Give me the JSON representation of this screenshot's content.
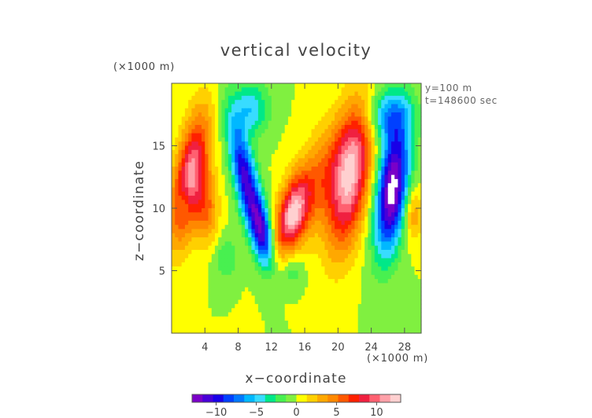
{
  "chart_data": {
    "type": "heatmap",
    "title": "vertical velocity",
    "xlabel": "x−coordinate",
    "ylabel": "z−coordinate",
    "x_unit": "(×1000 m)",
    "y_unit": "(×1000 m)",
    "xlim": [
      0,
      30
    ],
    "ylim": [
      0,
      20
    ],
    "x_ticks": [
      4,
      8,
      12,
      16,
      20,
      24,
      28
    ],
    "y_ticks": [
      5,
      10,
      15
    ],
    "x_tick_labels": [
      "4",
      "8",
      "12",
      "16",
      "20",
      "24",
      "28"
    ],
    "y_tick_labels": [
      "5",
      "10",
      "15"
    ],
    "annotations": [
      "y=100 m",
      "t=148600 sec"
    ],
    "colorbar": {
      "min": -13,
      "max": 13,
      "ticks": [
        -10,
        -5,
        0,
        5,
        10
      ],
      "tick_labels": [
        "−10",
        "−5",
        "0",
        "5",
        "10"
      ],
      "colors": [
        "#7a00c8",
        "#4800d8",
        "#1800e8",
        "#0040ff",
        "#0078ff",
        "#00b8ff",
        "#38dcff",
        "#00e888",
        "#48f050",
        "#80f040",
        "#ffff00",
        "#ffd000",
        "#ffa800",
        "#ff8800",
        "#ff5800",
        "#ff2000",
        "#f02040",
        "#ff6070",
        "#ffa0a8",
        "#ffd0d0"
      ]
    },
    "features": [
      {
        "kind": "updraft",
        "x": 2.2,
        "z": 12.5,
        "sx": 1.3,
        "sz": 3.5,
        "w": 11,
        "tilt": 0.25
      },
      {
        "kind": "updraft",
        "x": 4.2,
        "z": 10.0,
        "sx": 1.0,
        "sz": 2.0,
        "w": 5,
        "tilt": 0.0
      },
      {
        "kind": "downdraft",
        "x": 9.0,
        "z": 12.0,
        "sx": 1.0,
        "sz": 3.5,
        "w": -11,
        "tilt": -0.3
      },
      {
        "kind": "downdraft",
        "x": 11.0,
        "z": 8.0,
        "sx": 0.8,
        "sz": 1.8,
        "w": -8,
        "tilt": -0.2
      },
      {
        "kind": "updraft",
        "x": 14.5,
        "z": 9.5,
        "sx": 1.2,
        "sz": 2.0,
        "w": 10,
        "tilt": 0.3
      },
      {
        "kind": "updraft",
        "x": 21.5,
        "z": 12.5,
        "sx": 1.6,
        "sz": 4.0,
        "w": 11.5,
        "tilt": 0.2
      },
      {
        "kind": "updraft",
        "x": 17.5,
        "z": 12.0,
        "sx": 2.2,
        "sz": 3.5,
        "w": 5,
        "tilt": 0.5
      },
      {
        "kind": "downdraft",
        "x": 26.5,
        "z": 11.5,
        "sx": 1.3,
        "sz": 3.5,
        "w": -14,
        "tilt": 0.15
      },
      {
        "kind": "downdraft",
        "x": 9.5,
        "z": 18.0,
        "sx": 1.5,
        "sz": 1.5,
        "w": -5,
        "tilt": 0.0
      },
      {
        "kind": "downdraft",
        "x": 26.0,
        "z": 17.5,
        "sx": 2.0,
        "sz": 1.5,
        "w": -6,
        "tilt": 0.0
      },
      {
        "kind": "downdraft",
        "x": 1.5,
        "z": 10.5,
        "sx": 0.6,
        "sz": 1.0,
        "w": -3,
        "tilt": 0.0
      },
      {
        "kind": "downdraft",
        "x": 14.5,
        "z": 5.0,
        "sx": 1.0,
        "sz": 1.0,
        "w": -2.5,
        "tilt": 0.0
      },
      {
        "kind": "downdraft",
        "x": 6.5,
        "z": 6.0,
        "sx": 1.0,
        "sz": 1.2,
        "w": -2.5,
        "tilt": 0.0
      },
      {
        "kind": "updraft",
        "x": 29.0,
        "z": 9.5,
        "sx": 0.8,
        "sz": 1.5,
        "w": 4,
        "tilt": 0.0
      }
    ]
  }
}
